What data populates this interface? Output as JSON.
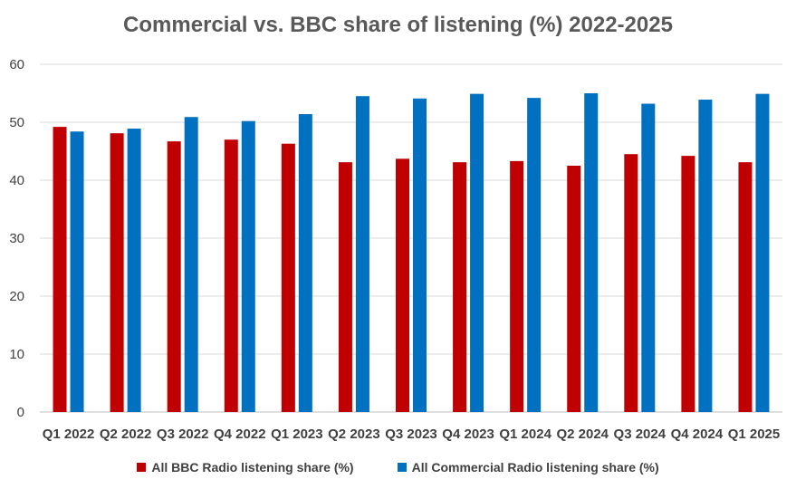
{
  "chart_data": {
    "type": "bar",
    "title": "Commercial vs. BBC share of listening (%) 2022-2025",
    "xlabel": "",
    "ylabel": "",
    "ylim": [
      0,
      60
    ],
    "yticks": [
      "0",
      "10",
      "20",
      "30",
      "40",
      "50",
      "60"
    ],
    "grid": true,
    "legend_position": "bottom",
    "categories": [
      "Q1 2022",
      "Q2 2022",
      "Q3 2022",
      "Q4 2022",
      "Q1 2023",
      "Q2 2023",
      "Q3 2023",
      "Q4 2023",
      "Q1 2024",
      "Q2 2024",
      "Q3 2024",
      "Q4 2024",
      "Q1 2025"
    ],
    "series": [
      {
        "name": "All BBC Radio listening share (%)",
        "color": "#C00000",
        "values": [
          49.2,
          48.1,
          46.7,
          47.0,
          46.3,
          43.1,
          43.7,
          43.1,
          43.3,
          42.5,
          44.5,
          44.2,
          43.1
        ]
      },
      {
        "name": "All Commercial Radio listening share (%)",
        "color": "#0070C0",
        "values": [
          48.4,
          48.9,
          50.9,
          50.2,
          51.4,
          54.5,
          54.1,
          54.9,
          54.2,
          55.0,
          53.2,
          53.9,
          54.9
        ]
      }
    ]
  }
}
